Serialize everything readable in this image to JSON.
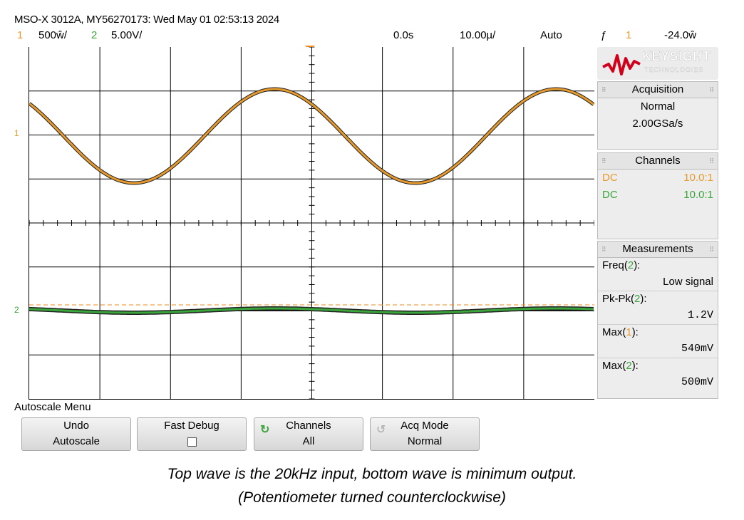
{
  "title": "MSO-X 3012A, MY56270173: Wed May 01 02:53:13 2024",
  "status": {
    "ch1_num": "1",
    "ch1_scale": "500ŵ/",
    "ch2_num": "2",
    "ch2_scale": "5.00V/",
    "time_delay": "0.0s",
    "timebase": "10.00µ/",
    "trigger_mode": "Auto",
    "trigger_icon": "ƒ",
    "trigger_source": "1",
    "trigger_level": "-24.0ŵ"
  },
  "colors": {
    "ch1": "#e69a2e",
    "ch2": "#3aa53a",
    "trigger": "#f08a1c"
  },
  "grid_markers": {
    "ch1_ground": "1",
    "ch2_ground": "2",
    "trigger_tick": "T"
  },
  "sidebar": {
    "logo_brand": "KEYSIGHT",
    "logo_sub": "TECHNOLOGIES",
    "acquisition": {
      "title": "Acquisition",
      "mode": "Normal",
      "rate": "2.00GSa/s"
    },
    "channels": {
      "title": "Channels",
      "rows": [
        {
          "coupling": "DC",
          "probe": "10.0:1"
        },
        {
          "coupling": "DC",
          "probe": "10.0:1"
        }
      ]
    },
    "measurements": {
      "title": "Measurements",
      "items": [
        {
          "label_pre": "Freq(",
          "ch": "2",
          "label_post": "):",
          "value": "Low signal"
        },
        {
          "label_pre": "Pk-Pk(",
          "ch": "2",
          "label_post": "):",
          "value": "1.2V"
        },
        {
          "label_pre": "Max(",
          "ch": "1",
          "label_post": "):",
          "value": "540mV"
        },
        {
          "label_pre": "Max(",
          "ch": "2",
          "label_post": "):",
          "value": "500mV"
        }
      ]
    }
  },
  "menu": {
    "label": "Autoscale Menu",
    "softkeys": [
      {
        "line1": "Undo",
        "line2": "Autoscale"
      },
      {
        "line1": "Fast Debug",
        "line2": ""
      },
      {
        "line1": "Channels",
        "line2": "All"
      },
      {
        "line1": "Acq Mode",
        "line2": "Normal"
      }
    ]
  },
  "caption": {
    "line1": "Top wave is the 20kHz input, bottom wave is minimum output.",
    "line2": "(Potentiometer turned counterclockwise)"
  }
}
